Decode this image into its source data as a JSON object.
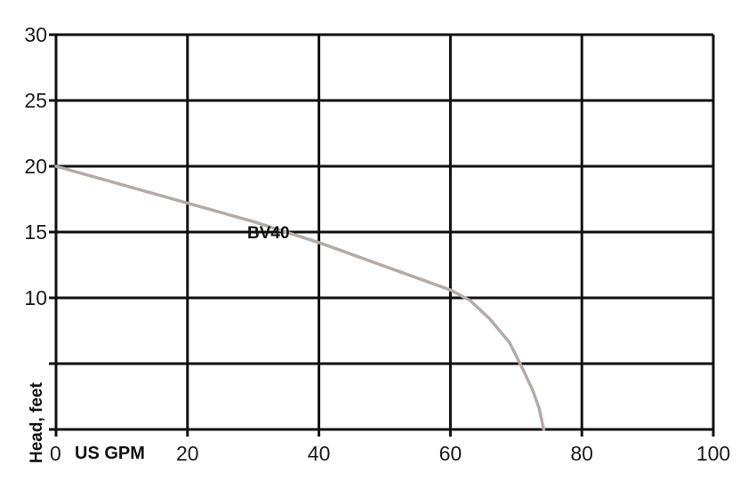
{
  "chart_data": {
    "type": "line",
    "xlabel": "US GPM",
    "ylabel": "Head, feet",
    "xlim": [
      0,
      100
    ],
    "ylim": [
      0,
      30
    ],
    "xticks": [
      "0",
      "20",
      "40",
      "60",
      "80",
      "100"
    ],
    "yticks": [
      "30",
      "25",
      "20",
      "15",
      "10"
    ],
    "grid": true,
    "series": [
      {
        "name": "BV40",
        "color": "#b5aba6",
        "points": [
          [
            0,
            20.0
          ],
          [
            10,
            18.6
          ],
          [
            20,
            17.2
          ],
          [
            30,
            15.8
          ],
          [
            35,
            15.0
          ],
          [
            40,
            14.2
          ],
          [
            45,
            13.3
          ],
          [
            50,
            12.4
          ],
          [
            55,
            11.5
          ],
          [
            60,
            10.6
          ],
          [
            63,
            9.8
          ],
          [
            66,
            8.4
          ],
          [
            69,
            6.6
          ],
          [
            71,
            4.6
          ],
          [
            72.5,
            3.0
          ],
          [
            73.5,
            1.6
          ],
          [
            74.2,
            0.0
          ]
        ]
      }
    ]
  }
}
